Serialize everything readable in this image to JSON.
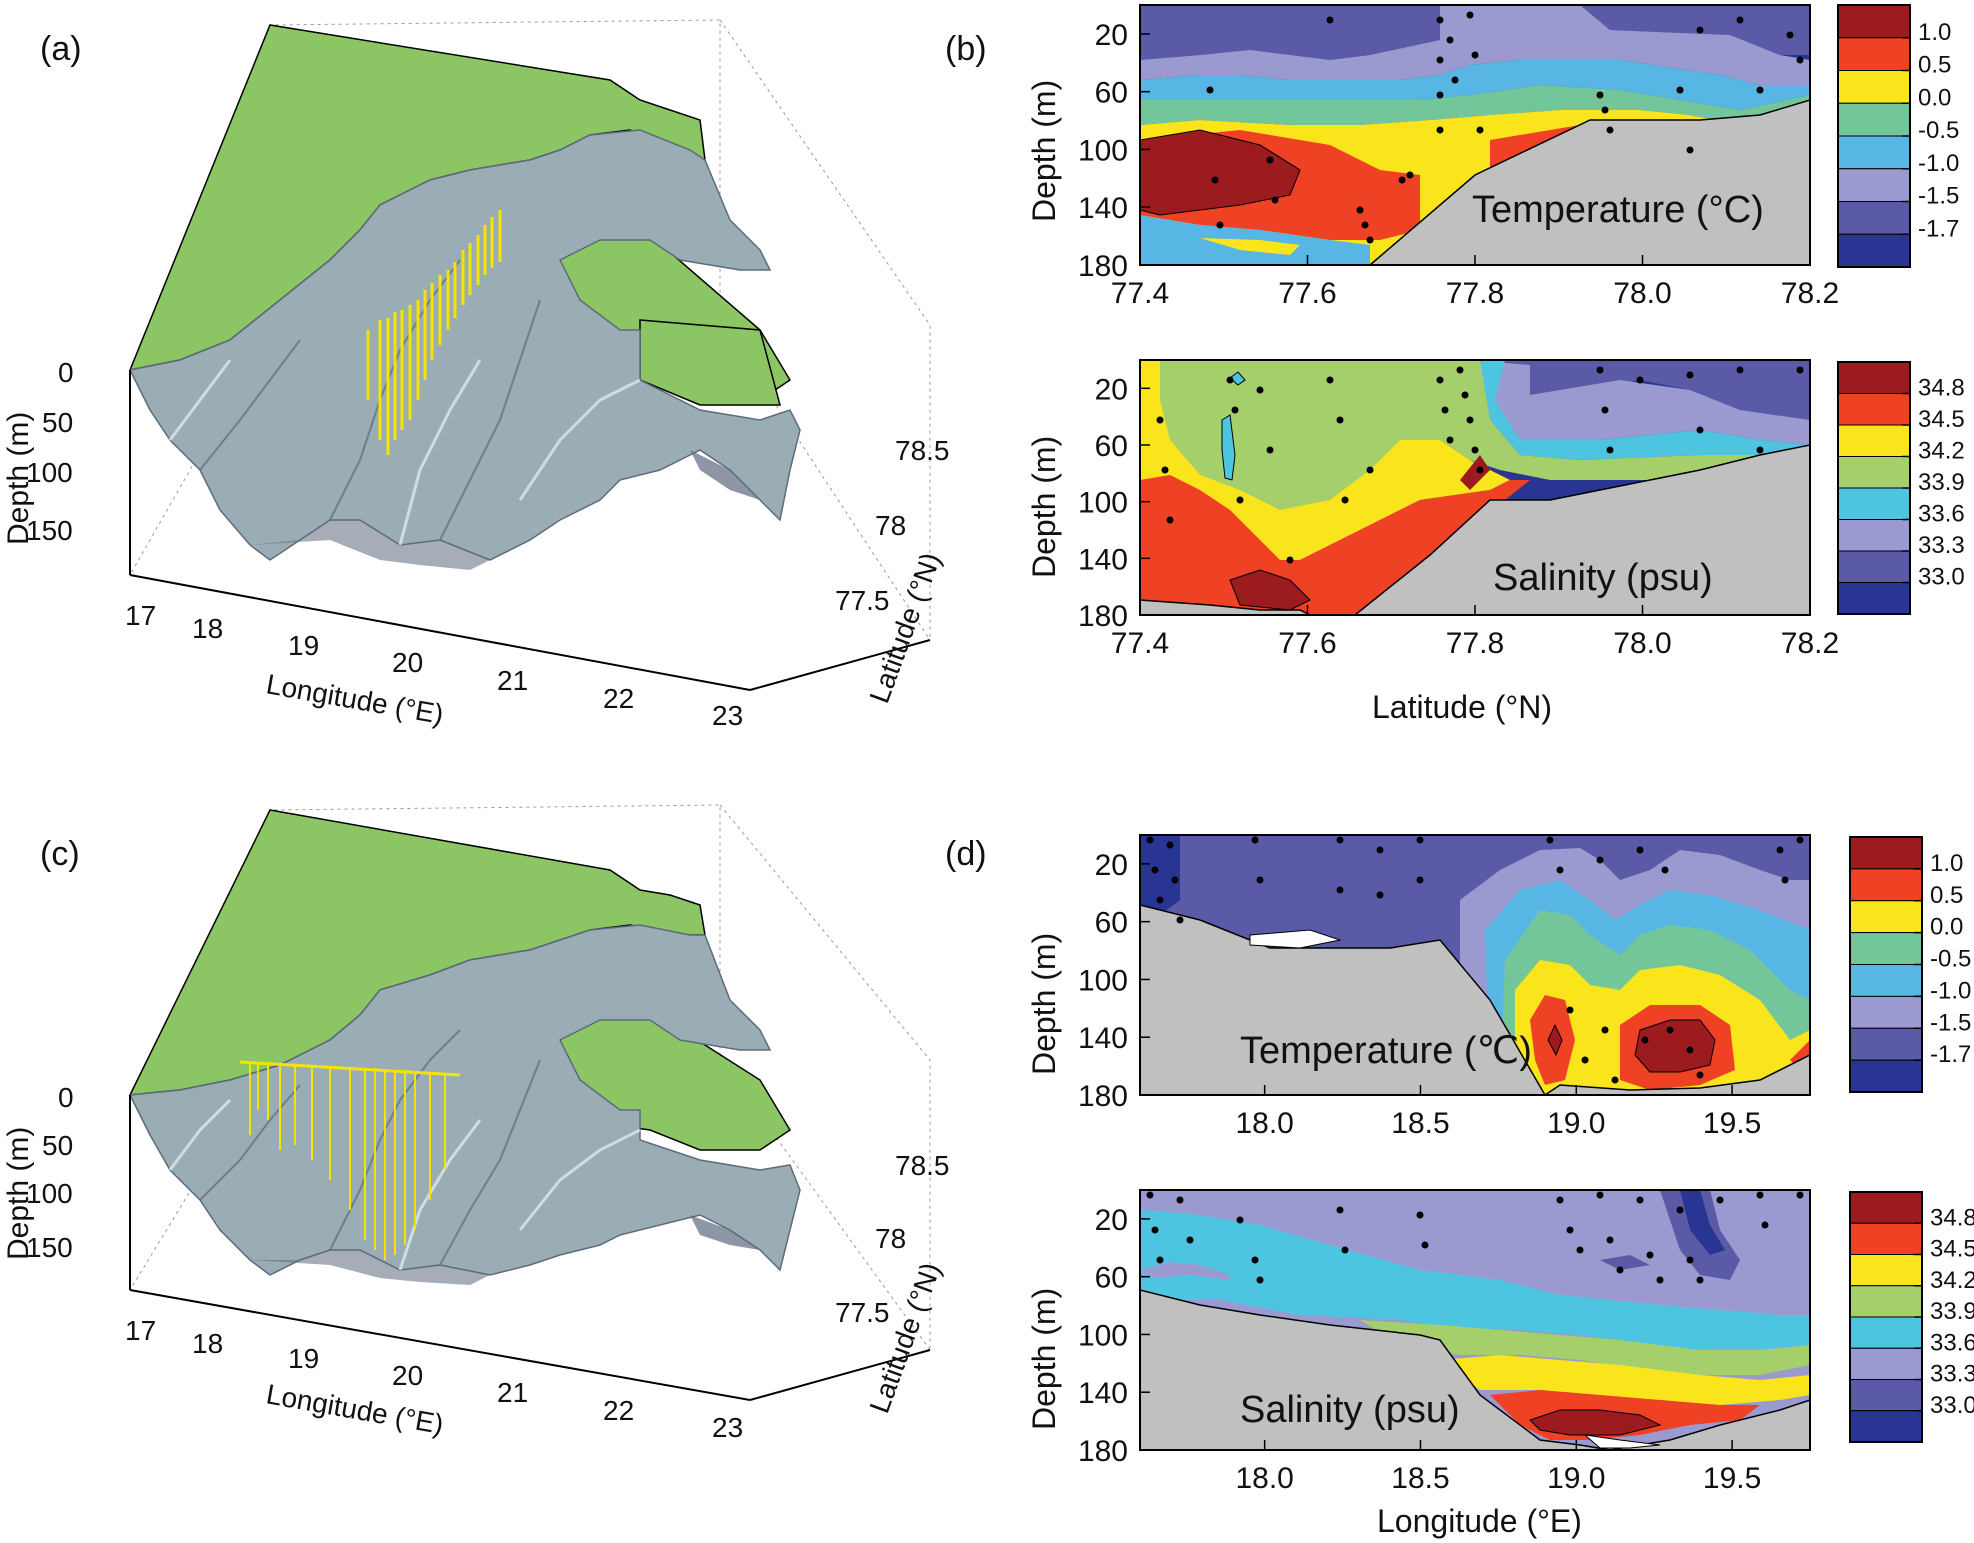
{
  "figure": {
    "panel_labels": [
      "(a)",
      "(b)",
      "(c)",
      "(d)"
    ],
    "colors": {
      "land": "#8cc564",
      "seafloor": "#9aadb4",
      "seafloor_dark": "#5d6a7d",
      "stations": "#f5e400",
      "bottom_mask": "#c0c0c0",
      "data_points": "#000000"
    }
  },
  "chart_data": [
    {
      "panel": "(a)",
      "type": "surface3d",
      "xlabel": "Longitude (°E)",
      "ylabel": "Latitude (°N)",
      "zlabel": "Depth (m)",
      "x_ticks": [
        "17",
        "18",
        "19",
        "20",
        "21",
        "22",
        "23"
      ],
      "y_ticks": [
        "77.5",
        "78",
        "78.5"
      ],
      "z_ticks": [
        "0",
        "50",
        "100",
        "150"
      ],
      "xlim": [
        17,
        23
      ],
      "station_layout": "meridional transect"
    },
    {
      "panel": "(b)",
      "type": "contour_section",
      "xlabel": "",
      "ylabel": "Depth (m)",
      "x_ticks": [
        "77.4",
        "77.6",
        "77.8",
        "78.0",
        "78.2"
      ],
      "y_ticks": [
        "20",
        "60",
        "100",
        "140",
        "180"
      ],
      "xlim": [
        77.4,
        78.2
      ],
      "ylim": [
        180,
        0
      ],
      "inset_label": "Temperature (°C)",
      "legend_labels": [
        "1.0",
        "0.5",
        "0.0",
        "-0.5",
        "-1.0",
        "-1.5",
        "-1.7"
      ],
      "legend_colors": [
        "#9b1b1f",
        "#ef4123",
        "#fae41c",
        "#72c69a",
        "#58b6e4",
        "#9a9ad0",
        "#5a5aa6",
        "#283593"
      ],
      "bottom_profile": {
        "x": [
          77.4,
          77.6,
          77.63,
          77.95,
          78.05,
          78.2
        ],
        "depth": [
          180,
          180,
          150,
          100,
          90,
          70
        ]
      }
    },
    {
      "panel": "(b)",
      "type": "contour_section",
      "xlabel": "Latitude (°N)",
      "ylabel": "Depth (m)",
      "x_ticks": [
        "77.4",
        "77.6",
        "77.8",
        "78.0",
        "78.2"
      ],
      "y_ticks": [
        "20",
        "60",
        "100",
        "140",
        "180"
      ],
      "xlim": [
        77.4,
        78.2
      ],
      "ylim": [
        180,
        0
      ],
      "inset_label": "Salinity (psu)",
      "legend_labels": [
        "34.8",
        "34.5",
        "34.2",
        "33.9",
        "33.6",
        "33.3",
        "33.0"
      ],
      "legend_colors": [
        "#9b1b1f",
        "#ef4123",
        "#fae41c",
        "#a5cf6a",
        "#4ec5e0",
        "#9a9ad0",
        "#5a5aa6",
        "#283593"
      ],
      "bottom_profile": {
        "x": [
          77.4,
          77.6,
          77.63,
          77.95,
          78.05,
          78.2
        ],
        "depth": [
          180,
          180,
          150,
          100,
          90,
          70
        ]
      }
    },
    {
      "panel": "(c)",
      "type": "surface3d",
      "xlabel": "Longitude (°E)",
      "ylabel": "Latitude (°N)",
      "zlabel": "Depth (m)",
      "x_ticks": [
        "17",
        "18",
        "19",
        "20",
        "21",
        "22",
        "23"
      ],
      "y_ticks": [
        "77.5",
        "78",
        "78.5"
      ],
      "z_ticks": [
        "0",
        "50",
        "100",
        "150"
      ],
      "xlim": [
        17,
        23
      ],
      "station_layout": "zonal transect"
    },
    {
      "panel": "(d)",
      "type": "contour_section",
      "xlabel": "",
      "ylabel": "Depth (m)",
      "x_ticks": [
        "18.0",
        "18.5",
        "19.0",
        "19.5"
      ],
      "y_ticks": [
        "20",
        "60",
        "100",
        "140",
        "180"
      ],
      "xlim": [
        17.6,
        19.75
      ],
      "ylim": [
        180,
        0
      ],
      "inset_label": "Temperature (℃)",
      "legend_labels": [
        "1.0",
        "0.5",
        "0.0",
        "-0.5",
        "-1.0",
        "-1.5",
        "-1.7"
      ],
      "legend_colors": [
        "#9b1b1f",
        "#ef4123",
        "#fae41c",
        "#72c69a",
        "#58b6e4",
        "#9a9ad0",
        "#5a5aa6",
        "#283593"
      ],
      "bottom_profile": {
        "x": [
          17.6,
          18.0,
          18.7,
          19.05,
          19.45,
          19.75
        ],
        "depth": [
          50,
          75,
          80,
          165,
          160,
          130
        ]
      }
    },
    {
      "panel": "(d)",
      "type": "contour_section",
      "xlabel": "Longitude (°E)",
      "ylabel": "Depth (m)",
      "x_ticks": [
        "18.0",
        "18.5",
        "19.0",
        "19.5"
      ],
      "y_ticks": [
        "20",
        "60",
        "100",
        "140",
        "180"
      ],
      "xlim": [
        17.6,
        19.75
      ],
      "ylim": [
        180,
        0
      ],
      "inset_label": "Salinity (psu)",
      "legend_labels": [
        "34.8",
        "34.5",
        "34.2",
        "33.9",
        "33.6",
        "33.3",
        "33.0"
      ],
      "legend_colors": [
        "#9b1b1f",
        "#ef4123",
        "#fae41c",
        "#a5cf6a",
        "#4ec5e0",
        "#9a9ad0",
        "#5a5aa6",
        "#283593"
      ],
      "bottom_profile": {
        "x": [
          17.6,
          18.0,
          18.7,
          19.05,
          19.45,
          19.75
        ],
        "depth": [
          50,
          75,
          80,
          165,
          160,
          130
        ]
      }
    }
  ]
}
